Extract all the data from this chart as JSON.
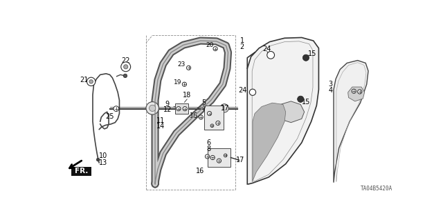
{
  "background_color": "#ffffff",
  "diagram_code": "TA04B5420A",
  "fig_width": 6.4,
  "fig_height": 3.19,
  "dpi": 100,
  "line_color": "#2a2a2a",
  "text_color": "#000000",
  "font_size": 7.0
}
